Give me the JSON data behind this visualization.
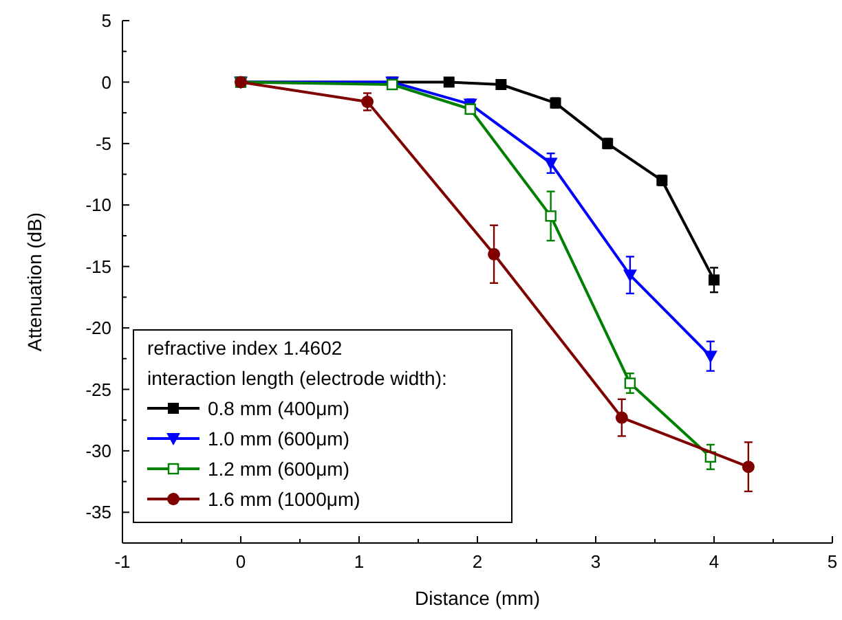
{
  "chart_data": {
    "type": "line",
    "xlabel": "Distance (mm)",
    "ylabel": "Attenuation (dB)",
    "legend_title": "refractive index 1.4602\ninteraction length (electrode width):",
    "xlim": [
      -1,
      5
    ],
    "xticks": [
      -1,
      0,
      1,
      2,
      3,
      4,
      5
    ],
    "ylim": [
      -37.5,
      5
    ],
    "yticks": [
      5,
      0,
      -5,
      -10,
      -15,
      -20,
      -25,
      -30,
      -35
    ],
    "grid": false,
    "legend": "bottom left",
    "series": [
      {
        "name": "0.8 mm (400μm)",
        "color": "#000000",
        "marker": "square",
        "x": [
          0,
          1.28,
          1.76,
          2.2,
          2.66,
          3.1,
          3.56,
          4.0
        ],
        "values": [
          0,
          0,
          0,
          -0.2,
          -1.7,
          -5.0,
          -8.0,
          -16.1
        ],
        "errors": [
          null,
          null,
          null,
          null,
          0.4,
          0.4,
          0.4,
          1.0
        ]
      },
      {
        "name": "1.0 mm (600μm)",
        "color": "#0000ff",
        "marker": "triangle-down",
        "x": [
          0,
          1.28,
          1.94,
          2.62,
          3.29,
          3.97
        ],
        "values": [
          0,
          0,
          -1.8,
          -6.6,
          -15.7,
          -22.3
        ],
        "errors": [
          null,
          null,
          0.4,
          0.8,
          1.5,
          1.2
        ]
      },
      {
        "name": "1.2 mm (600μm)",
        "color": "#008000",
        "marker": "square-open",
        "x": [
          0,
          1.28,
          1.94,
          2.62,
          3.29,
          3.97
        ],
        "values": [
          0,
          -0.2,
          -2.2,
          -10.9,
          -24.5,
          -30.5
        ],
        "errors": [
          null,
          null,
          0.4,
          2.0,
          0.8,
          1.0
        ]
      },
      {
        "name": "1.6 mm (1000μm)",
        "color": "#800000",
        "marker": "circle",
        "x": [
          0,
          1.07,
          2.14,
          3.22,
          4.29
        ],
        "values": [
          0,
          -1.6,
          -14.0,
          -27.3,
          -31.3
        ],
        "errors": [
          null,
          0.7,
          2.35,
          1.5,
          2.0
        ]
      }
    ]
  }
}
